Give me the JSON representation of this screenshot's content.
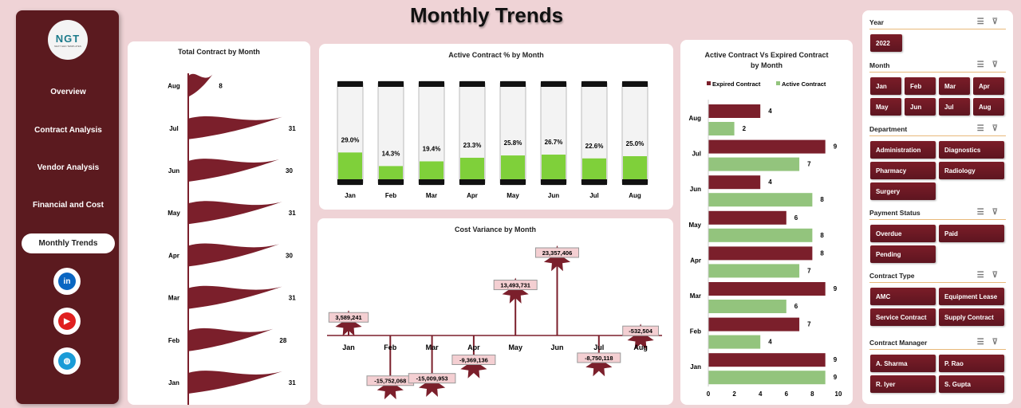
{
  "title": "Monthly Trends",
  "sidebar": {
    "logo": "NGT",
    "logo_sub": "NEXT GEN TEMPLATES",
    "items": [
      "Overview",
      "Contract Analysis",
      "Vendor Analysis",
      "Financial and Cost",
      "Monthly Trends"
    ],
    "active": "Monthly Trends",
    "social": [
      {
        "icon": "linkedin-icon",
        "label": "in"
      },
      {
        "icon": "youtube-icon",
        "label": "▶"
      },
      {
        "icon": "globe-icon",
        "label": "◍"
      }
    ]
  },
  "colors": {
    "maroon": "#7b1f2b",
    "green": "#93c47d",
    "bg": "#efd3d6",
    "sidebar": "#5b1a1f"
  },
  "chart_data": [
    {
      "type": "bar",
      "title": "Total Contract by Month",
      "categories": [
        "Jan",
        "Feb",
        "Mar",
        "Apr",
        "May",
        "Jun",
        "Jul",
        "Aug"
      ],
      "values": [
        31,
        28,
        31,
        30,
        31,
        30,
        31,
        8
      ]
    },
    {
      "type": "bar",
      "title": "Active Contract % by Month",
      "categories": [
        "Jan",
        "Feb",
        "Mar",
        "Apr",
        "May",
        "Jun",
        "Jul",
        "Aug"
      ],
      "values": [
        29.0,
        14.3,
        19.4,
        23.3,
        25.8,
        26.7,
        22.6,
        25.0
      ],
      "labels": [
        "29.0%",
        "14.3%",
        "19.4%",
        "23.3%",
        "25.8%",
        "26.7%",
        "22.6%",
        "25.0%"
      ]
    },
    {
      "type": "line",
      "title": "Cost Variance by Month",
      "categories": [
        "Jan",
        "Feb",
        "Mar",
        "Apr",
        "May",
        "Jun",
        "Jul",
        "Aug"
      ],
      "values": [
        3589241,
        -15752068,
        -15009953,
        -9369136,
        13493731,
        23357406,
        -8750118,
        -532504
      ],
      "labels": [
        "3,589,241",
        "-15,752,068",
        "-15,009,953",
        "-9,369,136",
        "13,493,731",
        "23,357,406",
        "-8,750,118",
        "-532,504"
      ]
    },
    {
      "type": "bar",
      "title": "Active Contract Vs Expired Contract by Month",
      "categories": [
        "Aug",
        "Jul",
        "Jun",
        "May",
        "Apr",
        "Mar",
        "Feb",
        "Jan"
      ],
      "series": [
        {
          "name": "Expired Contract",
          "values": [
            4,
            9,
            4,
            6,
            8,
            9,
            7,
            9
          ]
        },
        {
          "name": "Active Contract",
          "values": [
            2,
            7,
            8,
            8,
            7,
            6,
            4,
            9
          ]
        }
      ],
      "xticks": [
        "0",
        "2",
        "4",
        "6",
        "8",
        "10"
      ],
      "xlim": [
        0,
        10
      ]
    }
  ],
  "slicers": [
    {
      "title": "Year",
      "items": [
        "2022"
      ]
    },
    {
      "title": "Month",
      "items": [
        "Jan",
        "Feb",
        "Mar",
        "Apr",
        "May",
        "Jun",
        "Jul",
        "Aug"
      ]
    },
    {
      "title": "Department",
      "items": [
        "Administration",
        "Diagnostics",
        "Pharmacy",
        "Radiology",
        "Surgery"
      ]
    },
    {
      "title": "Payment Status",
      "items": [
        "Overdue",
        "Paid",
        "Pending"
      ]
    },
    {
      "title": "Contract Type",
      "items": [
        "AMC",
        "Equipment Lease",
        "Service Contract",
        "Supply Contract"
      ]
    },
    {
      "title": "Contract Manager",
      "items": [
        "A. Sharma",
        "P. Rao",
        "R. Iyer",
        "S. Gupta"
      ]
    }
  ]
}
